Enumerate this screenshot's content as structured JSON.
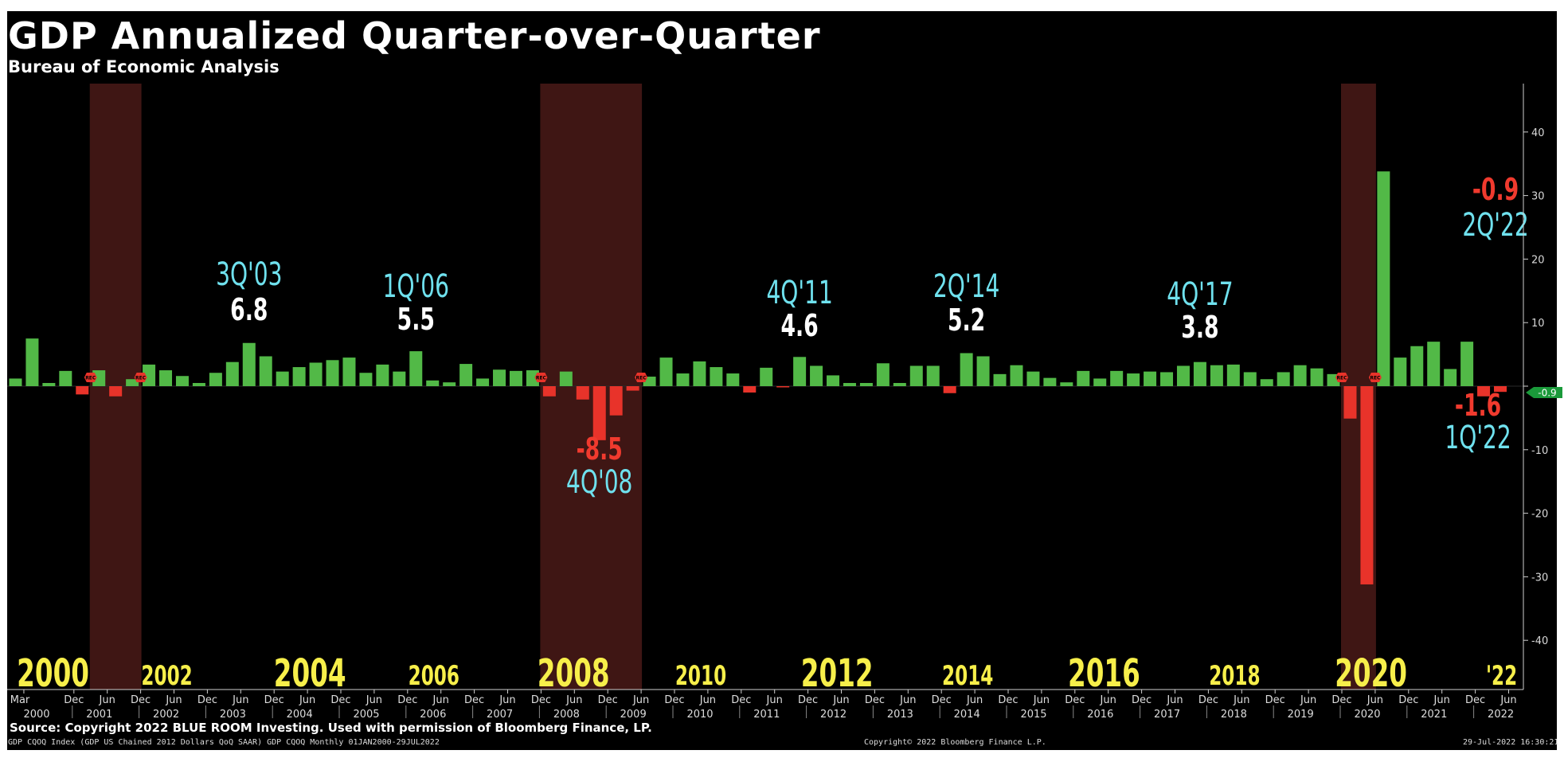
{
  "header": {
    "title": "GDP Annualized Quarter-over-Quarter",
    "subtitle": "Bureau of Economic Analysis"
  },
  "footer": {
    "source": "Source: Copyright 2022 BLUE ROOM Investing. Used with permission of Bloomberg Finance, LP.",
    "index_info": "GDP CQOQ Index (GDP US Chained 2012 Dollars QoQ SAAR) GDP CQOQ Monthly 01JAN2000-29JUL2022",
    "copyright": "Copyright© 2022 Bloomberg Finance L.P.",
    "timestamp": "29-Jul-2022 16:30:21"
  },
  "colors": {
    "positive": "#52b947",
    "negative": "#e8332a",
    "recession": "#4a1a18",
    "quarter_label": "#6fe1ee",
    "value_label": "#ffffff",
    "negative_label": "#f03a2e",
    "year_label": "#f7ef4a",
    "current_tag": "#1a9a3a"
  },
  "chart_data": {
    "type": "bar",
    "title": "GDP Annualized Quarter-over-Quarter",
    "subtitle": "Bureau of Economic Analysis",
    "start_quarter": "1Q'00",
    "quarter_values": [
      1.2,
      7.5,
      0.5,
      2.4,
      -1.3,
      2.5,
      -1.6,
      1.1,
      3.4,
      2.5,
      1.6,
      0.5,
      2.1,
      3.8,
      6.8,
      4.7,
      2.3,
      3.0,
      3.7,
      4.1,
      4.5,
      2.1,
      3.4,
      2.3,
      5.5,
      0.9,
      0.6,
      3.5,
      1.2,
      2.6,
      2.4,
      2.5,
      -1.6,
      2.3,
      -2.1,
      -8.5,
      -4.6,
      -0.7,
      1.5,
      4.5,
      2.0,
      3.9,
      3.0,
      2.0,
      -1.0,
      2.9,
      -0.1,
      4.6,
      3.2,
      1.7,
      0.5,
      0.5,
      3.6,
      0.5,
      3.2,
      3.2,
      -1.1,
      5.2,
      4.7,
      1.9,
      3.3,
      2.3,
      1.3,
      0.6,
      2.4,
      1.2,
      2.4,
      2.0,
      2.3,
      2.2,
      3.2,
      3.8,
      3.3,
      3.4,
      2.2,
      1.1,
      2.2,
      3.3,
      2.8,
      1.9,
      -5.1,
      -31.2,
      33.8,
      4.5,
      6.3,
      7.0,
      2.7,
      7.0,
      -1.6,
      -0.9
    ],
    "y_axis": {
      "ylim": [
        -47,
        47
      ],
      "ticks": [
        40,
        30,
        20,
        10,
        0,
        -10,
        -20,
        -30,
        -40
      ],
      "side": "right"
    },
    "current_value_tag": "-0.9",
    "x_axis": {
      "quarter_ticks": [
        "Mar",
        "Dec",
        "Jun",
        "Dec",
        "Jun",
        "Dec",
        "Jun",
        "Dec",
        "Jun",
        "Dec",
        "Jun",
        "Dec",
        "Jun",
        "Dec",
        "Jun",
        "Dec",
        "Jun",
        "Dec",
        "Jun",
        "Dec",
        "Jun",
        "Dec",
        "Jun",
        "Dec",
        "Jun",
        "Dec",
        "Jun",
        "Dec",
        "Jun",
        "Dec",
        "Jun",
        "Dec",
        "Jun",
        "Dec",
        "Jun",
        "Dec",
        "Jun",
        "Dec",
        "Jun",
        "Dec",
        "Jun",
        "Dec",
        "Jun",
        "Dec",
        "Jun"
      ],
      "years": [
        "2000",
        "2001",
        "2002",
        "2003",
        "2004",
        "2005",
        "2006",
        "2007",
        "2008",
        "2009",
        "2010",
        "2011",
        "2012",
        "2013",
        "2014",
        "2015",
        "2016",
        "2017",
        "2018",
        "2019",
        "2020",
        "2021",
        "2022"
      ]
    },
    "recessions": [
      {
        "start": "2Q'01",
        "end": "4Q'01"
      },
      {
        "start": "1Q'08",
        "end": "2Q'09"
      },
      {
        "start": "1Q'20",
        "end": "2Q'20"
      }
    ],
    "big_year_labels": [
      {
        "text": "2000",
        "year": 2000.15,
        "size": "large"
      },
      {
        "text": "2002",
        "year": 2002.0,
        "size": "small"
      },
      {
        "text": "2004",
        "year": 2004.0,
        "size": "large"
      },
      {
        "text": "2006",
        "year": 2006.0,
        "size": "small"
      },
      {
        "text": "2008",
        "year": 2007.95,
        "size": "large"
      },
      {
        "text": "2010",
        "year": 2010.0,
        "size": "small"
      },
      {
        "text": "2012",
        "year": 2011.9,
        "size": "large"
      },
      {
        "text": "2014",
        "year": 2014.0,
        "size": "small"
      },
      {
        "text": "2016",
        "year": 2015.9,
        "size": "large"
      },
      {
        "text": "2018",
        "year": 2018.0,
        "size": "small"
      },
      {
        "text": "2020",
        "year": 2019.9,
        "size": "large"
      },
      {
        "text": "'22",
        "year": 2022.0,
        "size": "small"
      }
    ],
    "annotations": [
      {
        "quarter": "3Q'03",
        "value": "6.8",
        "sign": "positive"
      },
      {
        "quarter": "1Q'06",
        "value": "5.5",
        "sign": "positive"
      },
      {
        "quarter": "4Q'08",
        "value": "-8.5",
        "sign": "negative"
      },
      {
        "quarter": "4Q'11",
        "value": "4.6",
        "sign": "positive"
      },
      {
        "quarter": "2Q'14",
        "value": "5.2",
        "sign": "positive"
      },
      {
        "quarter": "4Q'17",
        "value": "3.8",
        "sign": "positive"
      },
      {
        "quarter": "1Q'22",
        "value": "-1.6",
        "sign": "negative"
      },
      {
        "quarter": "2Q'22",
        "value": "-0.9",
        "sign": "negative"
      }
    ],
    "rec_marker": "REC"
  }
}
